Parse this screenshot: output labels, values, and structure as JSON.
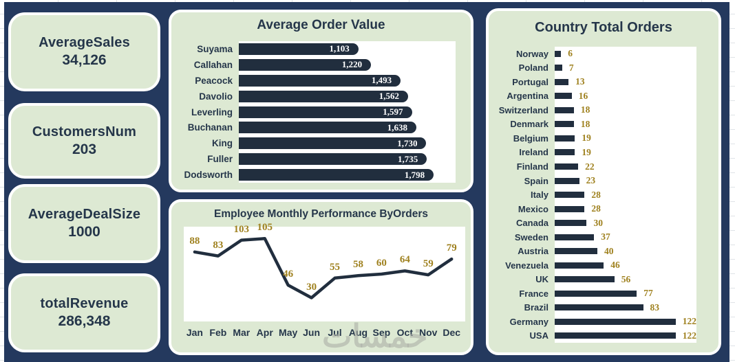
{
  "watermark": "خمسات",
  "colors": {
    "board_background": "#24395e",
    "panel_background": "#dde9d3",
    "bar_and_line": "#212e3e",
    "value_accent_gold": "#9f811f",
    "text_dark_navy": "#25364a",
    "plot_background": "#ffffff"
  },
  "kpis": [
    {
      "label": "AverageSales",
      "value": "34,126"
    },
    {
      "label": "CustomersNum",
      "value": "203"
    },
    {
      "label": "AverageDealSize",
      "value": "1000"
    },
    {
      "label": "totalRevenue",
      "value": "286,348"
    }
  ],
  "chart_data": [
    {
      "type": "bar",
      "orientation": "horizontal",
      "title": "Average Order Value",
      "categories": [
        "Suyama",
        "Callahan",
        "Peacock",
        "Davolio",
        "Leverling",
        "Buchanan",
        "King",
        "Fuller",
        "Dodsworth"
      ],
      "values": [
        1103,
        1220,
        1493,
        1562,
        1597,
        1638,
        1730,
        1735,
        1798
      ],
      "value_labels": [
        "1,103",
        "1,220",
        "1,493",
        "1,562",
        "1,597",
        "1,638",
        "1,730",
        "1,735",
        "1,798"
      ],
      "xlim": [
        0,
        2000
      ],
      "value_label_position": "inside-end",
      "grid": false,
      "legend": "none"
    },
    {
      "type": "line",
      "title": "Employee Monthly Performance ByOrders",
      "x": [
        "Jan",
        "Feb",
        "Mar",
        "Apr",
        "May",
        "Jun",
        "Jul",
        "Aug",
        "Sep",
        "Oct",
        "Nov",
        "Dec"
      ],
      "values": [
        88,
        83,
        103,
        105,
        46,
        30,
        55,
        58,
        60,
        64,
        59,
        79
      ],
      "ylim": [
        0,
        120
      ],
      "grid": false,
      "legend": "none",
      "data_labels": "above-points"
    },
    {
      "type": "bar",
      "orientation": "horizontal",
      "title": "Country Total Orders",
      "categories": [
        "Norway",
        "Poland",
        "Portugal",
        "Argentina",
        "Switzerland",
        "Denmark",
        "Belgium",
        "Ireland",
        "Finland",
        "Spain",
        "Italy",
        "Mexico",
        "Canada",
        "Sweden",
        "Austria",
        "Venezuela",
        "UK",
        "France",
        "Brazil",
        "Germany",
        "USA"
      ],
      "values": [
        6,
        7,
        13,
        16,
        18,
        18,
        19,
        19,
        22,
        23,
        28,
        28,
        30,
        37,
        40,
        46,
        56,
        77,
        83,
        122,
        122
      ],
      "xlim": [
        0,
        133
      ],
      "value_label_position": "outside-end",
      "grid": false,
      "legend": "none"
    }
  ]
}
